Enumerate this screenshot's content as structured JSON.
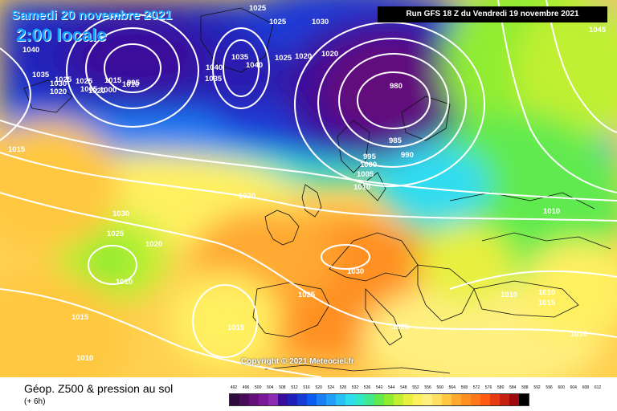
{
  "header": {
    "date_label": "Samedi 20 novembre 2021",
    "time_label": "2:00 locale",
    "run_label": "Run GFS 18 Z du Vendredi 19 novembre 2021"
  },
  "copyright": "Copyright © 2021 Meteociel.fr",
  "footer": {
    "title": "Géop. Z500 & pression au sol",
    "subtitle": "(+ 6h)"
  },
  "legend": {
    "values": [
      "492",
      "496",
      "500",
      "504",
      "508",
      "512",
      "516",
      "520",
      "524",
      "528",
      "532",
      "536",
      "540",
      "544",
      "548",
      "552",
      "556",
      "560",
      "564",
      "568",
      "572",
      "576",
      "580",
      "584",
      "588",
      "592",
      "596",
      "600",
      "604",
      "608",
      "612"
    ],
    "colors": [
      "#2e0b3c",
      "#4a0a5a",
      "#63107b",
      "#7a1899",
      "#8c2ab3",
      "#3a0a9a",
      "#2020b8",
      "#1a3ad6",
      "#0a5cf0",
      "#1a7ff5",
      "#20a0f8",
      "#28c0f6",
      "#30dcf0",
      "#30e8c8",
      "#40e890",
      "#60ea50",
      "#90ec30",
      "#c0f030",
      "#e8f040",
      "#fff060",
      "#fff080",
      "#ffe060",
      "#ffc840",
      "#ffa830",
      "#ff9020",
      "#ff7818",
      "#ff5a10",
      "#e83a10",
      "#c82010",
      "#a00810",
      "#000000"
    ]
  },
  "map": {
    "isobar_labels": [
      "1025",
      "1025",
      "1030",
      "1050",
      "1045",
      "1035",
      "1040",
      "1040",
      "1035",
      "1025",
      "1020",
      "1020",
      "1040",
      "1035",
      "1030",
      "1025",
      "1020",
      "1025",
      "1020",
      "1015",
      "1010",
      "1005",
      "1000",
      "995",
      "995",
      "1000",
      "1005",
      "1010",
      "985",
      "980",
      "990",
      "1015",
      "1020",
      "1030",
      "1025",
      "1020",
      "1010",
      "1015",
      "1030",
      "1025",
      "1025",
      "1015",
      "1010",
      "1010",
      "1010",
      "1015",
      "1010",
      "1010"
    ]
  }
}
